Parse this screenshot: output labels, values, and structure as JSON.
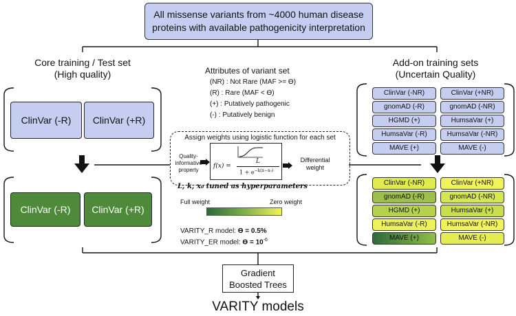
{
  "top_box": {
    "line1": "All missense variants from ~4000 human disease",
    "line2": "proteins with available pathogenicity interpretation"
  },
  "core": {
    "title_line1": "Core training / Test set",
    "title_line2": "(High quality)",
    "blue_boxes": [
      "ClinVar (-R)",
      "ClinVar (+R)"
    ],
    "green_boxes": [
      "ClinVar (-R)",
      "ClinVar (+R)"
    ]
  },
  "addon": {
    "title_line1": "Add-on training sets",
    "title_line2": "(Uncertain Quality)",
    "blue_boxes": [
      "ClinVar (-NR)",
      "ClinVar (+NR)",
      "gnomAD (-R)",
      "gnomAD (-NR)",
      "HGMD (+)",
      "HumsaVar (+)",
      "HumsaVar (-R)",
      "HumsaVar (-NR)",
      "MAVE (+)",
      "MAVE (-)"
    ],
    "weighted_boxes": [
      {
        "label": "ClinVar (-NR)",
        "color": "#e0ec4c"
      },
      {
        "label": "ClinVar (+NR)",
        "color": "#f0f45a"
      },
      {
        "label": "gnomAD (-R)",
        "color": "#9cc04a"
      },
      {
        "label": "gnomAD (-NR)",
        "color": "#d4e650"
      },
      {
        "label": "HGMD (+)",
        "color": "#b6d24c"
      },
      {
        "label": "HumsaVar (+)",
        "color": "#c8de4e"
      },
      {
        "label": "HumsaVar (-R)",
        "color": "#eef25a"
      },
      {
        "label": "HumsaVar (-NR)",
        "color": "#f2f45c"
      },
      {
        "label": "MAVE (+)",
        "color": "#4f8a3a"
      },
      {
        "label": "MAVE (-)",
        "color": "#e4ee52"
      }
    ]
  },
  "attributes": {
    "title": "Attributes of variant set",
    "items": [
      {
        "code": "(NR) :",
        "text": "Not Rare (MAF >= ϴ)"
      },
      {
        "code": "(R) :",
        "text": "Rare (MAF < ϴ)"
      },
      {
        "code": "(+) :",
        "text": "Putatively pathogenic"
      },
      {
        "code": "(-) :",
        "text": "Putatively benign"
      }
    ]
  },
  "weights": {
    "title": "Assign weights using logistic function for each set",
    "input_label": "Quality-informative property",
    "output_label": "Differential weight",
    "formula_lhs": "f(x) =",
    "formula_num": "L",
    "formula_den": "1 + e",
    "formula_exp": "−k(x−x₀)",
    "hyper_note": "L, k, x₀ tuned as hyperparameters"
  },
  "legend": {
    "full": "Full weight",
    "zero": "Zero weight",
    "colors": [
      "#2a6a3a",
      "#7fb04a",
      "#f2f25a"
    ]
  },
  "models": {
    "r_label": "VARITY_R model:",
    "r_value": "ϴ = 0.5%",
    "er_label": "VARITY_ER model:",
    "er_value": "ϴ = 10",
    "er_exp": "-6"
  },
  "gbt": {
    "line1": "Gradient",
    "line2": "Boosted Trees"
  },
  "output_title": "VARITY models"
}
